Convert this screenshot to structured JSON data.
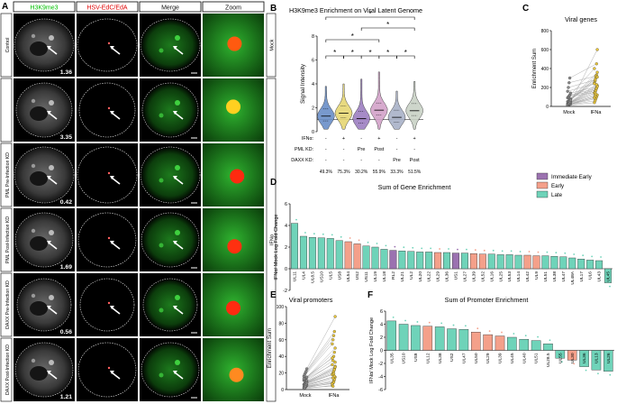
{
  "panel_letters": {
    "a": "A",
    "b": "B",
    "c": "C",
    "d": "D",
    "e": "E",
    "f": "F"
  },
  "grid": {
    "col_headers": [
      "H3K9me3",
      "HSV-EdC/EdA",
      "Merge",
      "Zoom"
    ],
    "col_header_colors": [
      "#00c000",
      "#e00000",
      "#111111",
      "#111111"
    ],
    "row_labels": [
      "Control",
      "",
      "PML Pre-Infection KD",
      "PML Post-Infection KD",
      "DAXX Pre-Infection KD",
      "DAXX Post-Infection KD"
    ],
    "values": [
      "1.36",
      "3.35",
      "0.42",
      "1.69",
      "0.56",
      "1.21"
    ],
    "side_labels": {
      "mock": "Mock",
      "ifna": "IFNα"
    }
  },
  "panel_b": {
    "title": "H3K9me3 Enrichment on Viral Latent Genome",
    "ylabel": "Signal Intensity",
    "yticks": [
      "0",
      "2",
      "4",
      "6",
      "8"
    ],
    "row_labels": [
      "IFNα:",
      "PML KD:",
      "DAXX KD:"
    ],
    "ifn": [
      "-",
      "+",
      "-",
      "+",
      "-",
      "+"
    ],
    "pml": [
      "-",
      "-",
      "Pre",
      "Post",
      "-",
      "-"
    ],
    "daxx": [
      "-",
      "-",
      "-",
      "-",
      "Pre",
      "Post"
    ],
    "percents": [
      "49.3%",
      "75.3%",
      "30.2%",
      "55.9%",
      "33.3%",
      "51.5%"
    ],
    "star": "*"
  },
  "panel_c": {
    "title": "Viral genes",
    "ylabel": "Enrichment Sum",
    "yticks": [
      "0",
      "200",
      "400",
      "600",
      "800"
    ],
    "xlabels": [
      "Mock",
      "IFNa"
    ]
  },
  "panel_e": {
    "title": "Viral promoters",
    "ylabel": "Enrichment Sum",
    "yticks": [
      "0",
      "20",
      "40",
      "60",
      "80",
      "100"
    ],
    "xlabels": [
      "Mock",
      "IFNa"
    ]
  },
  "panel_d": {
    "title": "Sum of Gene Enrichment",
    "ylabel": "IFNα/ Mock Log Fold Change",
    "yticks": [
      "-2",
      "0",
      "2",
      "4",
      "6"
    ],
    "legend": [
      {
        "label": "Immediate Early",
        "color": "#9b72b0"
      },
      {
        "label": "Early",
        "color": "#f4a08a"
      },
      {
        "label": "Late",
        "color": "#6fd3b9"
      }
    ]
  },
  "panel_f": {
    "title": "Sum of Promoter Enrichment",
    "ylabel": "IFNα/ Mock Log Fold Change",
    "yticks": [
      "-6",
      "-4",
      "-2",
      "0",
      "2",
      "4",
      "6"
    ]
  },
  "chart_data": [
    {
      "type": "bar",
      "panel": "D",
      "title": "Sum of Gene Enrichment",
      "ylabel": "IFNα/ Mock Log Fold Change",
      "ylim": [
        -2,
        6
      ],
      "categories": [
        "UL11",
        "UL4",
        "UL8.5",
        "US10",
        "UL5",
        "US8",
        "UL54",
        "US2",
        "US11",
        "UL19",
        "UL18",
        "RL2",
        "UL21",
        "UL2",
        "UL20",
        "UL22",
        "UL29",
        "UL36",
        "US1",
        "UL27",
        "UL39",
        "UL52",
        "UL16",
        "UL25",
        "UL53",
        "UL14",
        "UL42",
        "UL9",
        "UL51",
        "UL38",
        "UL47",
        "UL48A",
        "UL17",
        "UL6",
        "UL43",
        "UL45"
      ],
      "values": [
        4.2,
        3.0,
        2.9,
        2.85,
        2.8,
        2.6,
        2.5,
        2.3,
        2.1,
        2.0,
        1.8,
        1.7,
        1.65,
        1.6,
        1.55,
        1.55,
        1.5,
        1.5,
        1.45,
        1.45,
        1.4,
        1.35,
        1.35,
        1.3,
        1.3,
        1.25,
        1.25,
        1.2,
        1.2,
        1.15,
        1.1,
        1.0,
        0.9,
        0.8,
        0.75,
        -1.3
      ],
      "classes": [
        "late",
        "late",
        "late",
        "late",
        "late",
        "late",
        "early",
        "early",
        "late",
        "late",
        "late",
        "ie",
        "late",
        "late",
        "late",
        "late",
        "early",
        "late",
        "ie",
        "late",
        "early",
        "early",
        "late",
        "late",
        "late",
        "late",
        "early",
        "early",
        "late",
        "late",
        "late",
        "late",
        "late",
        "late",
        "late",
        "late"
      ]
    },
    {
      "type": "bar",
      "panel": "F",
      "title": "Sum of Promoter Enrichment",
      "ylabel": "IFNα/ Mock Log Fold Change",
      "ylim": [
        -6,
        6
      ],
      "categories": [
        "UL35",
        "US10",
        "US9",
        "UL12",
        "UL38",
        "US2",
        "UL47",
        "UL50",
        "UL29",
        "UL39",
        "UL45",
        "UL40",
        "UL51",
        "UL28.5",
        "UL55",
        "UL30",
        "UL36",
        "UL13",
        "UL26"
      ],
      "values": [
        4.5,
        4.0,
        3.8,
        3.7,
        3.6,
        3.3,
        3.2,
        2.8,
        2.4,
        2.2,
        2.0,
        1.7,
        1.5,
        1.0,
        -1.2,
        -1.5,
        -2.5,
        -3.0,
        -3.2
      ],
      "classes": [
        "late",
        "late",
        "late",
        "early",
        "late",
        "late",
        "late",
        "early",
        "early",
        "early",
        "late",
        "late",
        "late",
        "late",
        "late",
        "early",
        "late",
        "late",
        "late"
      ]
    },
    {
      "type": "scatter",
      "panel": "C",
      "title": "Viral genes",
      "ylabel": "Enrichment Sum",
      "ylim": [
        0,
        800
      ],
      "categories": [
        "Mock",
        "IFNa"
      ],
      "pairs": [
        [
          10,
          40
        ],
        [
          15,
          60
        ],
        [
          20,
          80
        ],
        [
          22,
          100
        ],
        [
          25,
          120
        ],
        [
          28,
          140
        ],
        [
          30,
          160
        ],
        [
          35,
          180
        ],
        [
          40,
          200
        ],
        [
          45,
          220
        ],
        [
          50,
          250
        ],
        [
          55,
          270
        ],
        [
          60,
          300
        ],
        [
          70,
          330
        ],
        [
          80,
          360
        ],
        [
          90,
          400
        ],
        [
          100,
          150
        ],
        [
          110,
          170
        ],
        [
          120,
          190
        ],
        [
          140,
          210
        ],
        [
          160,
          240
        ],
        [
          200,
          280
        ],
        [
          250,
          320
        ],
        [
          300,
          450
        ],
        [
          40,
          600
        ],
        [
          18,
          90
        ],
        [
          26,
          110
        ],
        [
          33,
          130
        ],
        [
          48,
          230
        ],
        [
          65,
          310
        ]
      ]
    },
    {
      "type": "scatter",
      "panel": "E",
      "title": "Viral promoters",
      "ylabel": "Enrichment Sum",
      "ylim": [
        0,
        100
      ],
      "categories": [
        "Mock",
        "IFNa"
      ],
      "pairs": [
        [
          1,
          5
        ],
        [
          2,
          8
        ],
        [
          3,
          10
        ],
        [
          4,
          12
        ],
        [
          5,
          15
        ],
        [
          6,
          18
        ],
        [
          7,
          20
        ],
        [
          8,
          22
        ],
        [
          9,
          25
        ],
        [
          10,
          28
        ],
        [
          11,
          30
        ],
        [
          12,
          35
        ],
        [
          13,
          40
        ],
        [
          14,
          45
        ],
        [
          15,
          50
        ],
        [
          16,
          55
        ],
        [
          18,
          60
        ],
        [
          20,
          65
        ],
        [
          22,
          70
        ],
        [
          25,
          88
        ],
        [
          3,
          7
        ],
        [
          5,
          14
        ],
        [
          7,
          19
        ],
        [
          9,
          24
        ],
        [
          11,
          33
        ],
        [
          13,
          38
        ],
        [
          2,
          4
        ],
        [
          4,
          9
        ],
        [
          6,
          16
        ],
        [
          8,
          27
        ]
      ]
    },
    {
      "type": "violin",
      "panel": "B",
      "title": "H3K9me3 Enrichment on Viral Latent Genome",
      "ylabel": "Signal Intensity",
      "ylim": [
        0,
        8
      ],
      "categories": [
        "1",
        "2",
        "3",
        "4",
        "5",
        "6"
      ],
      "medians": [
        1.3,
        1.55,
        1.1,
        1.8,
        1.2,
        1.75
      ],
      "maxes": [
        3.8,
        4.0,
        4.4,
        5.0,
        3.4,
        4.2
      ],
      "colors": [
        "#6a8fc8",
        "#e6d774",
        "#9d7fc2",
        "#d3a3c9",
        "#a9b2c8",
        "#c9d2c6"
      ],
      "threshold": 1.0
    }
  ]
}
